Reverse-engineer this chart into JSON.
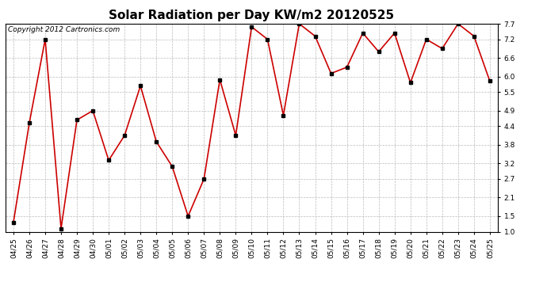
{
  "title": "Solar Radiation per Day KW/m2 20120525",
  "copyright_text": "Copyright 2012 Cartronics.com",
  "dates": [
    "04/25",
    "04/26",
    "04/27",
    "04/28",
    "04/29",
    "04/30",
    "05/01",
    "05/02",
    "05/03",
    "05/04",
    "05/05",
    "05/06",
    "05/07",
    "05/08",
    "05/09",
    "05/10",
    "05/11",
    "05/12",
    "05/13",
    "05/14",
    "05/15",
    "05/16",
    "05/17",
    "05/18",
    "05/19",
    "05/20",
    "05/21",
    "05/22",
    "05/23",
    "05/24",
    "05/25"
  ],
  "values": [
    1.3,
    4.5,
    7.2,
    1.1,
    4.6,
    4.9,
    3.3,
    4.1,
    5.7,
    3.9,
    3.1,
    1.5,
    2.7,
    5.9,
    4.1,
    7.6,
    7.2,
    4.75,
    7.7,
    7.3,
    6.1,
    6.3,
    7.4,
    6.8,
    7.4,
    5.8,
    7.2,
    6.9,
    7.7,
    7.3,
    5.85
  ],
  "ylim": [
    1.0,
    7.7
  ],
  "yticks": [
    1.0,
    1.5,
    2.1,
    2.7,
    3.2,
    3.8,
    4.4,
    4.9,
    5.5,
    6.0,
    6.6,
    7.2,
    7.7
  ],
  "line_color": "#cc0000",
  "marker_color": "#000000",
  "bg_color": "#ffffff",
  "grid_color": "#bbbbbb",
  "title_fontsize": 11,
  "tick_fontsize": 6.5,
  "copyright_fontsize": 6.5
}
